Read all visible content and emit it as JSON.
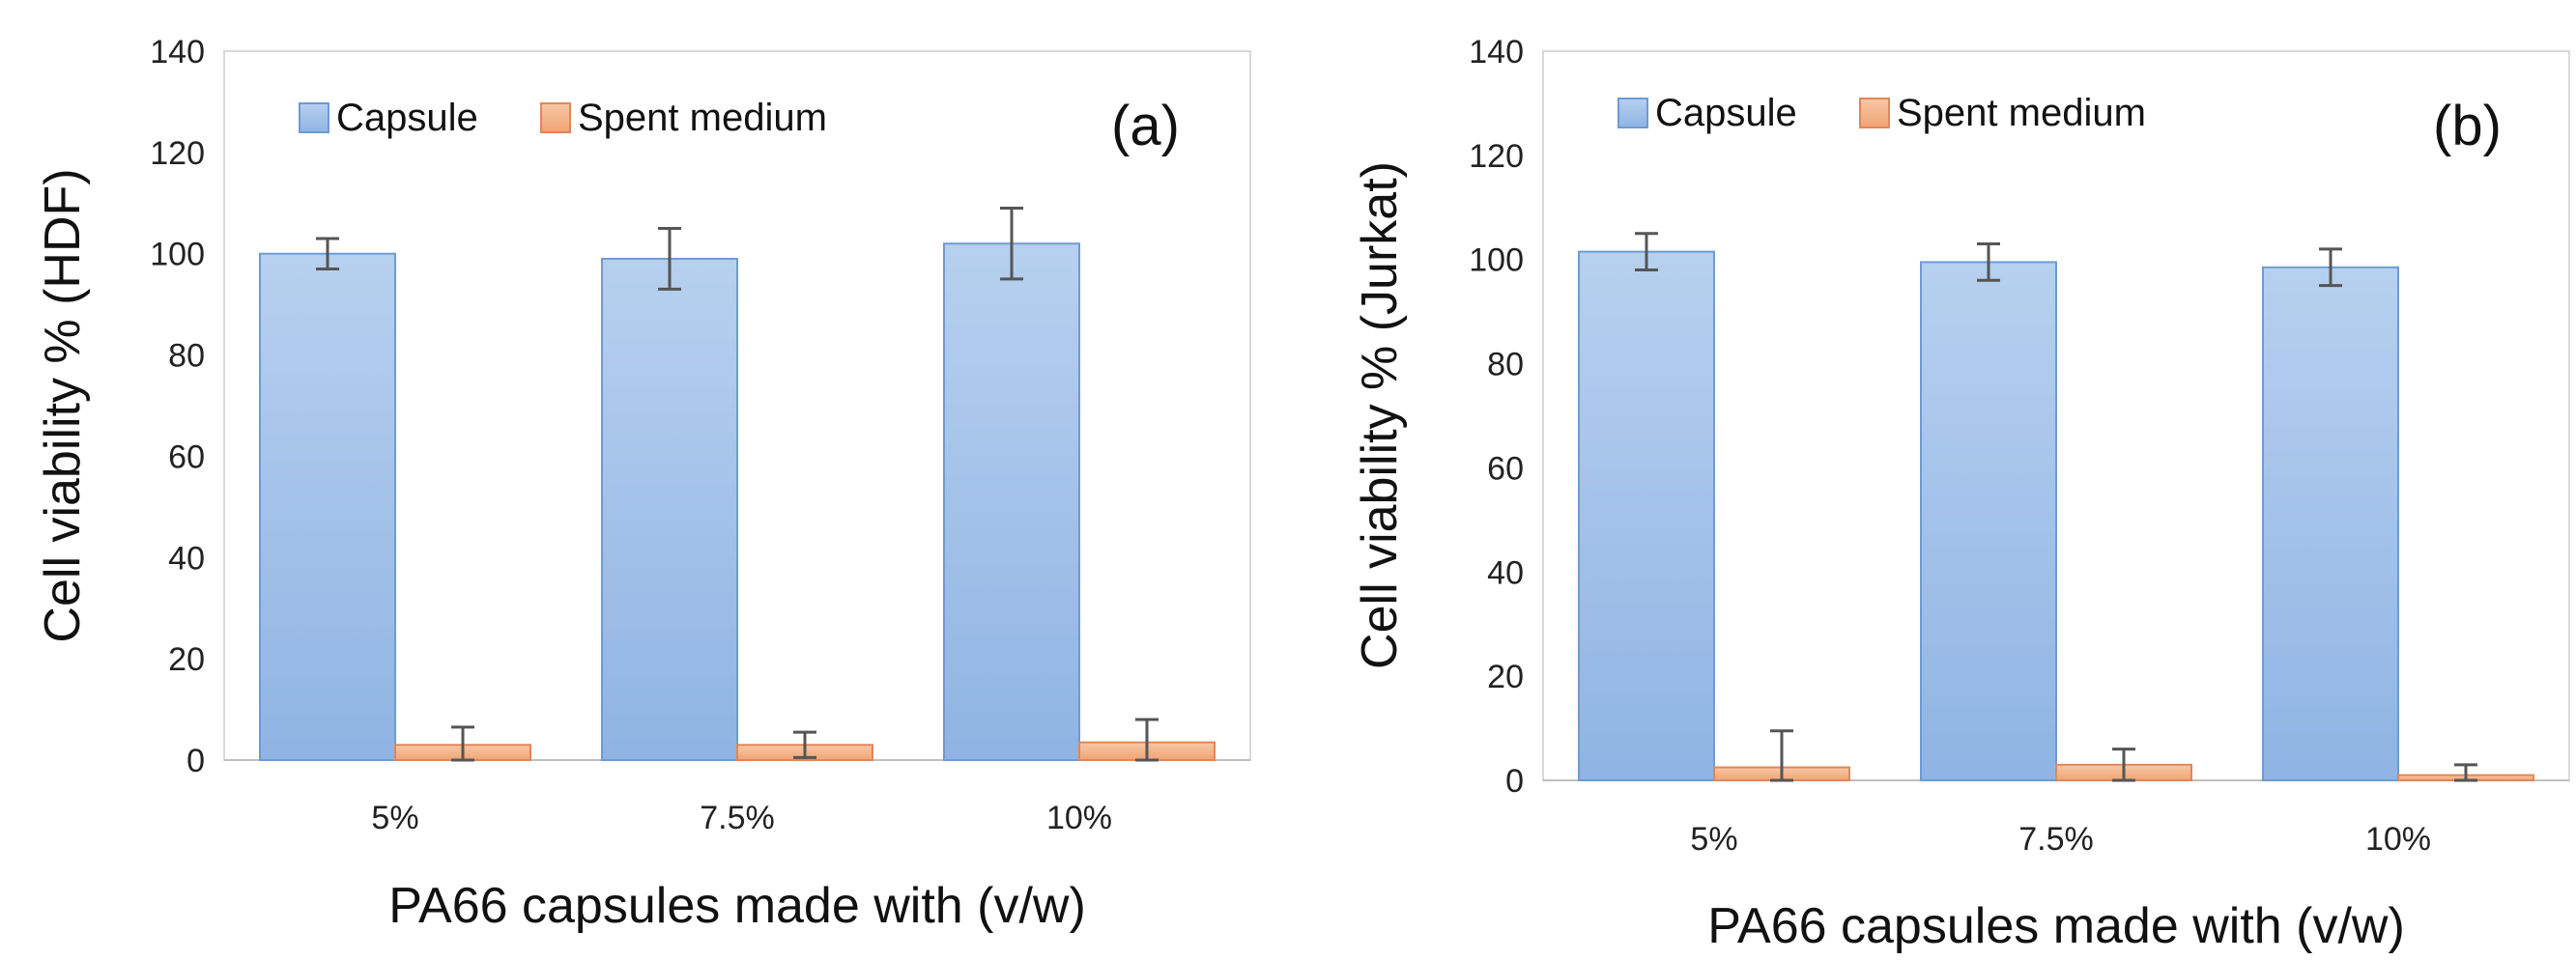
{
  "chart_data": [
    {
      "type": "bar",
      "panel_label": "(a)",
      "categories": [
        "5%",
        "7.5%",
        "10%"
      ],
      "series": [
        {
          "name": "Capsule",
          "values": [
            100,
            99,
            102
          ],
          "errors": [
            3,
            6,
            7
          ],
          "color": "#9dbfe8",
          "stroke": "#6e9bd3"
        },
        {
          "name": "Spent medium",
          "values": [
            3,
            3,
            3.5
          ],
          "errors": [
            3.5,
            2.5,
            4.5
          ],
          "color": "#f4b183",
          "stroke": "#e0875a"
        }
      ],
      "title": "",
      "xlabel": "PA66 capsules made with (v/w)",
      "ylabel": "Cell viability % (HDF)",
      "ylim": [
        0,
        140
      ],
      "yticks": [
        "0",
        "20",
        "40",
        "60",
        "80",
        "100",
        "120",
        "140"
      ],
      "legend": "top-left"
    },
    {
      "type": "bar",
      "panel_label": "(b)",
      "categories": [
        "5%",
        "7.5%",
        "10%"
      ],
      "series": [
        {
          "name": "Capsule",
          "values": [
            101.5,
            99.5,
            98.5
          ],
          "errors": [
            3.5,
            3.5,
            3.5
          ],
          "color": "#9dbfe8",
          "stroke": "#6e9bd3"
        },
        {
          "name": "Spent medium",
          "values": [
            2.5,
            3,
            1
          ],
          "errors": [
            7,
            3,
            2
          ],
          "color": "#f4b183",
          "stroke": "#e0875a"
        }
      ],
      "title": "",
      "xlabel": "PA66 capsules made with (v/w)",
      "ylabel": "Cell viability % (Jurkat)",
      "ylim": [
        0,
        140
      ],
      "yticks": [
        "0",
        "20",
        "40",
        "60",
        "80",
        "100",
        "120",
        "140"
      ],
      "legend": "top-left"
    }
  ]
}
